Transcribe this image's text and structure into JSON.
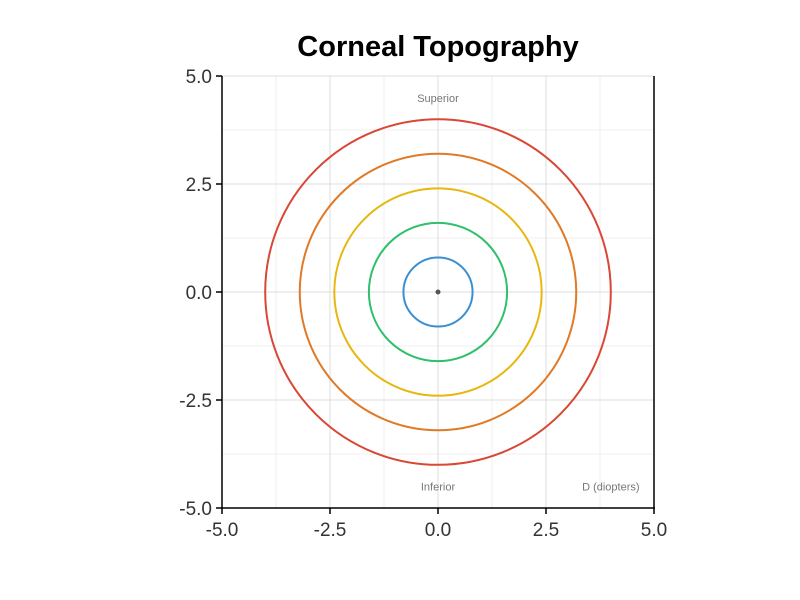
{
  "chart_data": {
    "type": "line",
    "title": "Corneal Topography",
    "xlabel": "",
    "ylabel": "",
    "xlim": [
      -5.0,
      5.0
    ],
    "ylim": [
      -5.0,
      5.0
    ],
    "x_ticks": [
      "-5.0",
      "-2.5",
      "0.0",
      "2.5",
      "5.0"
    ],
    "y_ticks": [
      "5.0",
      "2.5",
      "0.0",
      "-2.5",
      "-5.0"
    ],
    "grid": true,
    "legend": "none",
    "center_point": {
      "x": 0,
      "y": 0,
      "color": "#555555"
    },
    "series": [
      {
        "radius": 0.8,
        "color": "#3a8fd1"
      },
      {
        "radius": 1.6,
        "color": "#2fc06b"
      },
      {
        "radius": 2.4,
        "color": "#e8b70f"
      },
      {
        "radius": 3.2,
        "color": "#e07a26"
      },
      {
        "radius": 4.0,
        "color": "#d94735"
      }
    ],
    "annotations": [
      {
        "text": "Superior",
        "x": 0,
        "y": 4.4
      },
      {
        "text": "Inferior",
        "x": 0,
        "y": -4.6
      },
      {
        "text": "D (diopters)",
        "x": 4.0,
        "y": -4.6
      }
    ]
  }
}
